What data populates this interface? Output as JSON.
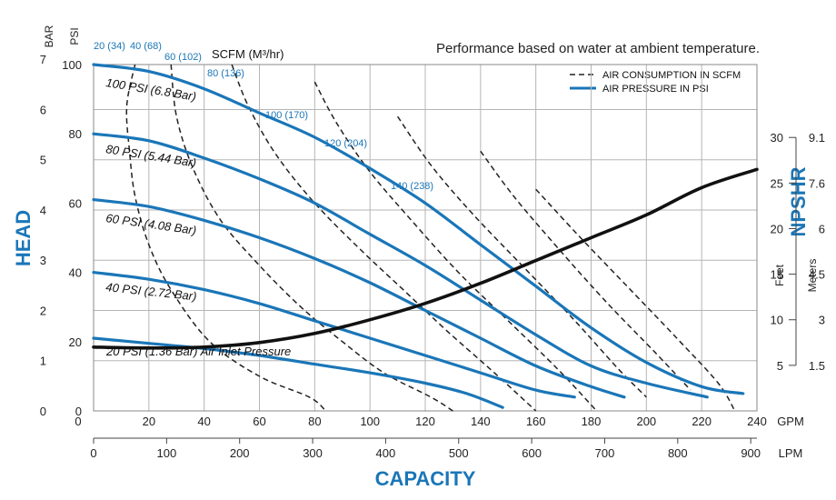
{
  "chart_data": {
    "type": "line",
    "title": "Performance based on water at ambient temperature.",
    "xlabel": "CAPACITY",
    "ylabel_left": "HEAD",
    "ylabel_right": "NPSHR",
    "x_units_primary": "GPM",
    "x_units_secondary": "LPM",
    "y_units_psi": "PSI",
    "y_units_bar": "BAR",
    "npshr_units": [
      "Feet",
      "Meters"
    ],
    "xlim_gpm": [
      0,
      240
    ],
    "ylim_psi": [
      0,
      100
    ],
    "x_ticks_gpm": [
      "0",
      "20",
      "40",
      "60",
      "80",
      "100",
      "120",
      "140",
      "160",
      "180",
      "200",
      "220",
      "240"
    ],
    "x_ticks_lpm": [
      "0",
      "100",
      "200",
      "300",
      "400",
      "500",
      "600",
      "700",
      "800",
      "900"
    ],
    "y_ticks_psi": [
      "0",
      "20",
      "40",
      "60",
      "80",
      "100"
    ],
    "y_ticks_bar": [
      "0",
      "1",
      "2",
      "3",
      "4",
      "5",
      "6",
      "7"
    ],
    "npshr_feet_ticks": [
      "5",
      "10",
      "15",
      "20",
      "25",
      "30"
    ],
    "npshr_meters_ticks": [
      "1.5",
      "3",
      "4.5",
      "6",
      "7.6",
      "9.1"
    ],
    "grid": true,
    "legend": {
      "position": "top-right",
      "items": [
        {
          "label": "AIR CONSUMPTION IN SCFM",
          "style": "dashed"
        },
        {
          "label": "AIR PRESSURE IN PSI",
          "style": "solid"
        }
      ]
    },
    "scfm_header": "SCFM (M³/hr)",
    "air_pressure_series": [
      {
        "name": "100 PSI (6.8 Bar)",
        "points": [
          [
            0,
            100
          ],
          [
            20,
            98
          ],
          [
            40,
            93
          ],
          [
            60,
            86
          ],
          [
            80,
            79
          ],
          [
            100,
            70
          ],
          [
            120,
            60
          ],
          [
            140,
            48
          ],
          [
            160,
            36
          ],
          [
            180,
            24
          ],
          [
            200,
            14
          ],
          [
            220,
            7
          ],
          [
            235,
            5
          ]
        ]
      },
      {
        "name": "80 PSI (5.44 Bar)",
        "points": [
          [
            0,
            80
          ],
          [
            20,
            78
          ],
          [
            40,
            73
          ],
          [
            60,
            67
          ],
          [
            80,
            60
          ],
          [
            100,
            51
          ],
          [
            120,
            42
          ],
          [
            140,
            32
          ],
          [
            160,
            22
          ],
          [
            180,
            13
          ],
          [
            200,
            8
          ],
          [
            222,
            4
          ]
        ]
      },
      {
        "name": "60 PSI (4.08 Bar)",
        "points": [
          [
            0,
            61
          ],
          [
            20,
            59
          ],
          [
            40,
            55
          ],
          [
            60,
            50
          ],
          [
            80,
            44
          ],
          [
            100,
            37
          ],
          [
            120,
            29
          ],
          [
            140,
            21
          ],
          [
            160,
            13
          ],
          [
            180,
            7
          ],
          [
            192,
            4
          ]
        ]
      },
      {
        "name": "40 PSI (2.72 Bar)",
        "points": [
          [
            0,
            40
          ],
          [
            20,
            38
          ],
          [
            40,
            35
          ],
          [
            60,
            31
          ],
          [
            80,
            26
          ],
          [
            100,
            21
          ],
          [
            120,
            16
          ],
          [
            140,
            11
          ],
          [
            160,
            6
          ],
          [
            174,
            4
          ]
        ]
      },
      {
        "name": "20 PSI (1.36 Bar) Air Inlet Pressure",
        "points": [
          [
            0,
            21
          ],
          [
            20,
            19.5
          ],
          [
            40,
            18
          ],
          [
            60,
            16
          ],
          [
            80,
            13.5
          ],
          [
            100,
            11
          ],
          [
            120,
            8
          ],
          [
            135,
            5
          ],
          [
            148,
            1
          ]
        ]
      }
    ],
    "air_consumption_series": [
      {
        "name": "20 (34)",
        "points": [
          [
            15,
            100
          ],
          [
            12,
            88
          ],
          [
            13,
            75
          ],
          [
            15,
            62
          ],
          [
            20,
            48
          ],
          [
            28,
            35
          ],
          [
            42,
            20
          ],
          [
            60,
            10
          ],
          [
            78,
            4
          ],
          [
            84,
            0
          ]
        ]
      },
      {
        "name": "40 (68)",
        "points": [
          [
            28,
            100
          ],
          [
            30,
            85
          ],
          [
            36,
            70
          ],
          [
            46,
            55
          ],
          [
            60,
            42
          ],
          [
            75,
            30
          ],
          [
            90,
            20
          ],
          [
            105,
            11
          ],
          [
            122,
            4
          ],
          [
            130,
            0
          ]
        ]
      },
      {
        "name": "60 (102)",
        "points": [
          [
            50,
            100
          ],
          [
            56,
            88
          ],
          [
            66,
            74
          ],
          [
            80,
            60
          ],
          [
            96,
            47
          ],
          [
            112,
            35
          ],
          [
            128,
            23
          ],
          [
            145,
            11
          ],
          [
            160,
            0
          ]
        ]
      },
      {
        "name": "80 (136)",
        "points": [
          [
            80,
            95
          ],
          [
            88,
            83
          ],
          [
            100,
            69
          ],
          [
            115,
            55
          ],
          [
            132,
            40
          ],
          [
            150,
            26
          ],
          [
            168,
            12
          ],
          [
            182,
            0
          ]
        ]
      },
      {
        "name": "100 (170)",
        "points": [
          [
            110,
            85
          ],
          [
            122,
            71
          ],
          [
            137,
            57
          ],
          [
            155,
            42
          ],
          [
            173,
            27
          ],
          [
            190,
            12
          ],
          [
            200,
            4
          ]
        ]
      },
      {
        "name": "120 (204)",
        "points": [
          [
            140,
            75
          ],
          [
            152,
            62
          ],
          [
            168,
            47
          ],
          [
            186,
            31
          ],
          [
            203,
            17
          ],
          [
            216,
            6
          ]
        ]
      },
      {
        "name": "140 (238)",
        "points": [
          [
            160,
            64
          ],
          [
            175,
            51
          ],
          [
            193,
            36
          ],
          [
            211,
            21
          ],
          [
            226,
            8
          ],
          [
            232,
            0
          ]
        ]
      }
    ],
    "npshr_curve": {
      "name": "NPSHR",
      "points_feet": [
        [
          0,
          7
        ],
        [
          20,
          6.9
        ],
        [
          40,
          7
        ],
        [
          60,
          7.5
        ],
        [
          80,
          8.5
        ],
        [
          100,
          10
        ],
        [
          120,
          11.8
        ],
        [
          140,
          14
        ],
        [
          160,
          16.5
        ],
        [
          180,
          19
        ],
        [
          200,
          21.5
        ],
        [
          220,
          24.5
        ],
        [
          240,
          26.5
        ]
      ]
    }
  }
}
